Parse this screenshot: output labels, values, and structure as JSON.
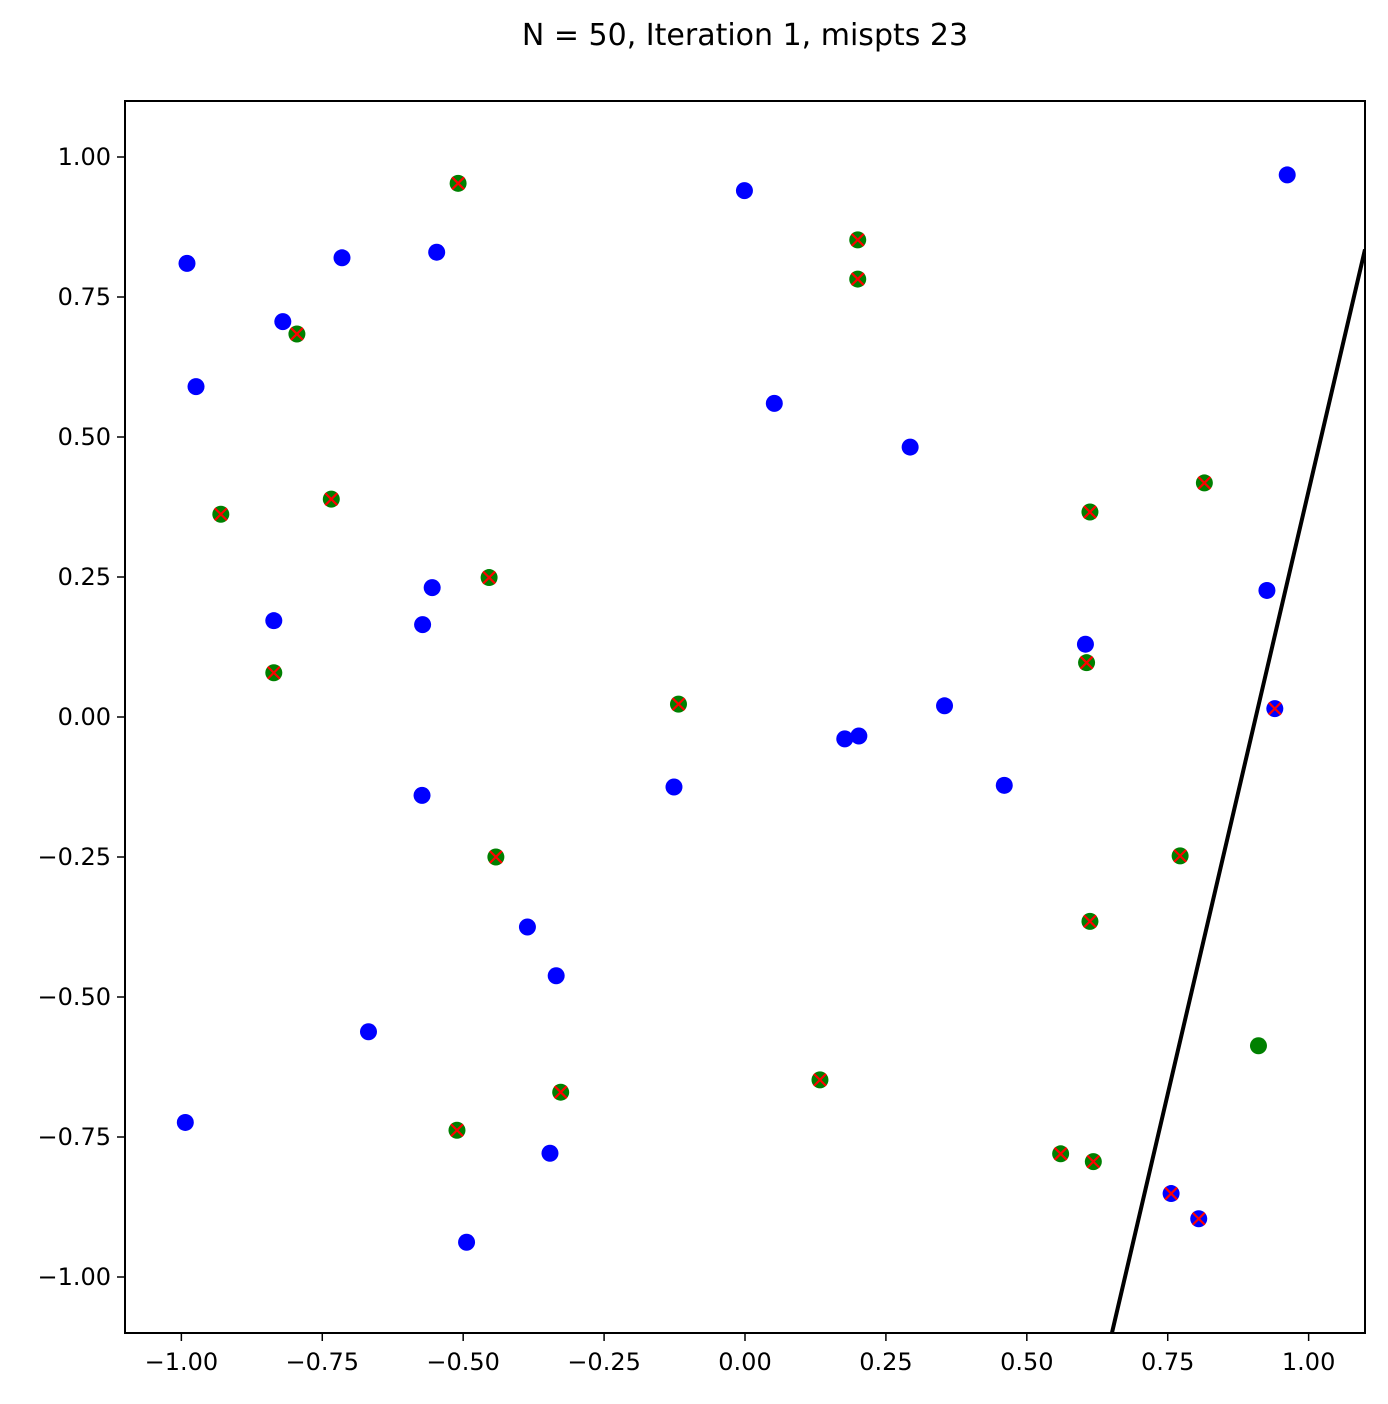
{
  "chart_data": {
    "type": "scatter",
    "title": "N = 50, Iteration 1, mispts 23",
    "xlabel": "",
    "ylabel": "",
    "xlim": [
      -1.1,
      1.1
    ],
    "ylim": [
      -1.1,
      1.1
    ],
    "x_ticks": [
      -1.0,
      -0.75,
      -0.5,
      -0.25,
      0.0,
      0.25,
      0.5,
      0.75,
      1.0
    ],
    "x_tick_labels": [
      "−1.00",
      "−0.75",
      "−0.50",
      "−0.25",
      "0.00",
      "0.25",
      "0.50",
      "0.75",
      "1.00"
    ],
    "y_ticks": [
      1.0,
      0.75,
      0.5,
      0.25,
      0.0,
      -0.25,
      -0.5,
      -0.75,
      -1.0
    ],
    "y_tick_labels": [
      "1.00",
      "0.75",
      "0.50",
      "0.25",
      "0.00",
      "−0.25",
      "−0.50",
      "−0.75",
      "−1.00"
    ],
    "grid": false,
    "colors": {
      "blue": "#0000ff",
      "green": "#008000",
      "misclassified_marker": "#ff0000",
      "line": "#000000"
    },
    "series": [
      {
        "color": "blue",
        "points": [
          [
            -0.99,
            0.81
          ],
          [
            -0.974,
            0.59
          ],
          [
            -0.82,
            0.706
          ],
          [
            -0.715,
            0.82
          ],
          [
            -0.547,
            0.83
          ],
          [
            -0.001,
            0.94
          ],
          [
            0.962,
            0.968
          ],
          [
            0.052,
            0.56
          ],
          [
            0.293,
            0.482
          ],
          [
            -0.836,
            0.172
          ],
          [
            -0.555,
            0.231
          ],
          [
            -0.572,
            0.165
          ],
          [
            0.604,
            0.13
          ],
          [
            0.926,
            0.226
          ],
          [
            0.354,
            0.02
          ],
          [
            0.177,
            -0.039
          ],
          [
            0.202,
            -0.034
          ],
          [
            -0.126,
            -0.125
          ],
          [
            -0.573,
            -0.14
          ],
          [
            0.46,
            -0.122
          ],
          [
            -0.386,
            -0.375
          ],
          [
            -0.335,
            -0.462
          ],
          [
            -0.668,
            -0.562
          ],
          [
            -0.993,
            -0.724
          ],
          [
            -0.346,
            -0.779
          ],
          [
            -0.494,
            -0.938
          ],
          [
            0.94,
            0.015
          ],
          [
            0.756,
            -0.851
          ],
          [
            0.805,
            -0.896
          ]
        ]
      },
      {
        "color": "green",
        "points": [
          [
            -0.509,
            0.953
          ],
          [
            0.2,
            0.852
          ],
          [
            0.2,
            0.782
          ],
          [
            -0.795,
            0.684
          ],
          [
            -0.93,
            0.362
          ],
          [
            -0.734,
            0.389
          ],
          [
            0.612,
            0.366
          ],
          [
            0.815,
            0.418
          ],
          [
            -0.454,
            0.249
          ],
          [
            -0.836,
            0.079
          ],
          [
            0.606,
            0.097
          ],
          [
            -0.118,
            0.023
          ],
          [
            -0.442,
            -0.25
          ],
          [
            0.772,
            -0.248
          ],
          [
            0.612,
            -0.365
          ],
          [
            0.911,
            -0.587
          ],
          [
            0.133,
            -0.648
          ],
          [
            -0.327,
            -0.67
          ],
          [
            -0.511,
            -0.738
          ],
          [
            0.56,
            -0.78
          ],
          [
            0.618,
            -0.794
          ]
        ]
      },
      {
        "marker": "x",
        "color": "misclassified_marker",
        "points": [
          [
            -0.509,
            0.953
          ],
          [
            0.2,
            0.852
          ],
          [
            0.2,
            0.782
          ],
          [
            -0.795,
            0.684
          ],
          [
            -0.93,
            0.362
          ],
          [
            -0.734,
            0.389
          ],
          [
            0.612,
            0.366
          ],
          [
            0.815,
            0.418
          ],
          [
            -0.454,
            0.249
          ],
          [
            -0.836,
            0.079
          ],
          [
            0.606,
            0.097
          ],
          [
            -0.118,
            0.023
          ],
          [
            -0.442,
            -0.25
          ],
          [
            0.772,
            -0.248
          ],
          [
            0.612,
            -0.365
          ],
          [
            0.133,
            -0.648
          ],
          [
            -0.327,
            -0.67
          ],
          [
            -0.511,
            -0.738
          ],
          [
            0.56,
            -0.78
          ],
          [
            0.618,
            -0.794
          ],
          [
            0.94,
            0.015
          ],
          [
            0.756,
            -0.851
          ],
          [
            0.805,
            -0.896
          ]
        ]
      }
    ],
    "line": {
      "color": "line",
      "points": [
        [
          0.651,
          -1.1
        ],
        [
          1.1,
          0.835
        ]
      ]
    }
  }
}
